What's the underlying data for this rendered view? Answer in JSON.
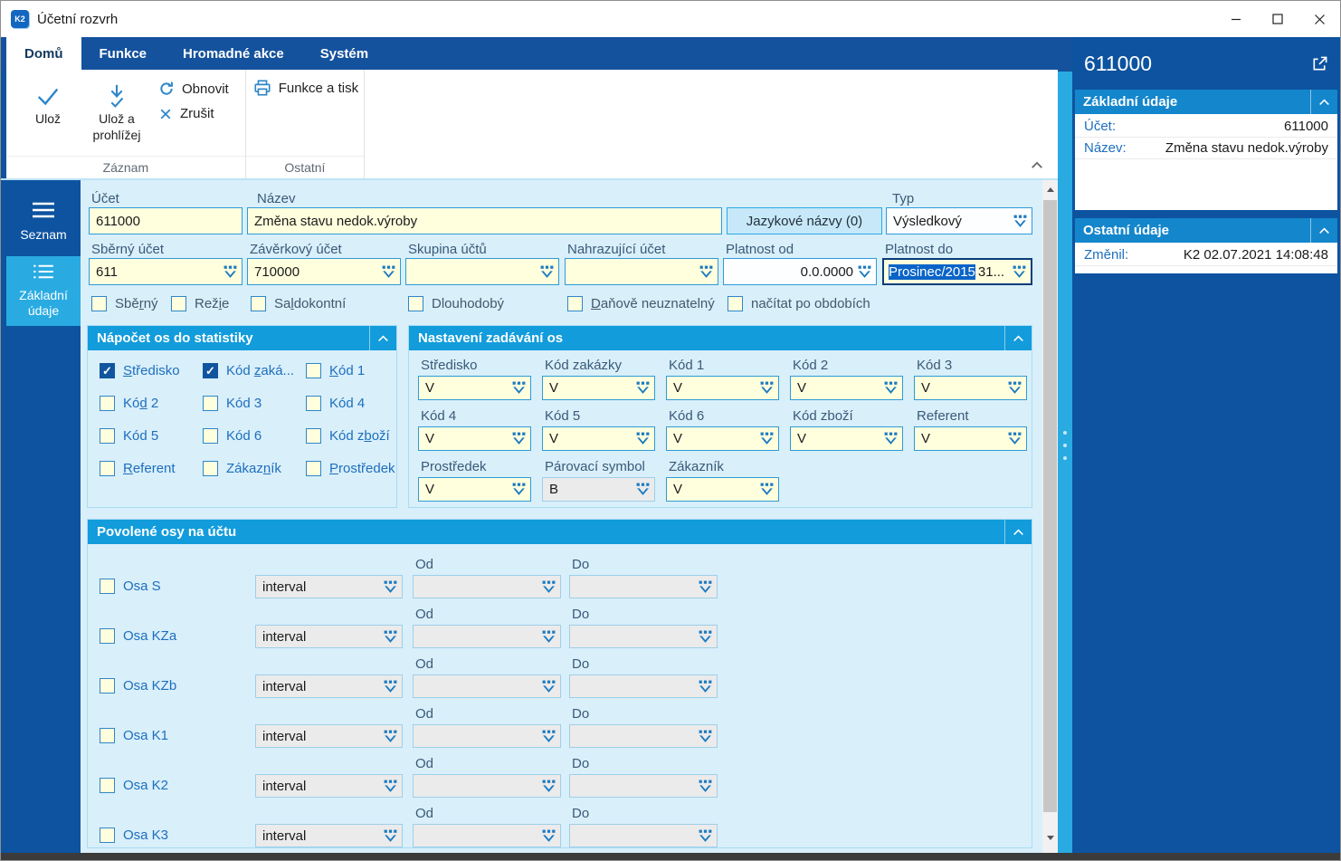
{
  "window": {
    "title": "Účetní rozvrh",
    "app_icon": "K2"
  },
  "ribbon": {
    "tabs": [
      {
        "label": "Domů",
        "active": true
      },
      {
        "label": "Funkce",
        "active": false
      },
      {
        "label": "Hromadné akce",
        "active": false
      },
      {
        "label": "Systém",
        "active": false
      }
    ],
    "buttons": {
      "save": "Ulož",
      "save_and_view": "Ulož a prohlížej",
      "refresh": "Obnovit",
      "cancel": "Zrušit",
      "functions_print": "Funkce a tisk"
    },
    "groups": {
      "record": "Záznam",
      "other": "Ostatní"
    }
  },
  "nav": {
    "items": [
      {
        "label": "Seznam",
        "active": false
      },
      {
        "label": "Základní údaje",
        "active": true
      }
    ]
  },
  "form": {
    "ucet": {
      "label": "Účet",
      "value": "611000"
    },
    "nazev": {
      "label": "Název",
      "value": "Změna stavu nedok.výroby"
    },
    "jazykove_nazvy_button": "Jazykové názvy (0)",
    "typ": {
      "label": "Typ",
      "value": "Výsledkový"
    },
    "sberny_ucet": {
      "label": "Sběrný účet",
      "value": "611"
    },
    "zaverkovy_ucet": {
      "label": "Závěrkový účet",
      "value": "710000"
    },
    "skupina_uctu": {
      "label": "Skupina účtů",
      "value": ""
    },
    "nahrazujici_ucet": {
      "label": "Nahrazující účet",
      "value": ""
    },
    "platnost_od": {
      "label": "Platnost od",
      "value": "0.0.0000"
    },
    "platnost_do": {
      "label": "Platnost do",
      "value_selected": "Prosinec/2015",
      "value_rest": "31..."
    },
    "checks": [
      {
        "pre": "Sbě",
        "accel": "r",
        "post": "ný",
        "checked": false
      },
      {
        "pre": "Rež",
        "accel": "i",
        "post": "e",
        "checked": false
      },
      {
        "pre": "Sa",
        "accel": "l",
        "post": "dokontní",
        "checked": false
      },
      {
        "pre": "Dlouhodobý",
        "accel": "",
        "post": "",
        "checked": false
      },
      {
        "pre": "",
        "accel": "D",
        "post": "aňově neuznatelný",
        "checked": false
      },
      {
        "pre": "načítat po obdobích",
        "accel": "",
        "post": "",
        "checked": false
      }
    ]
  },
  "napocet": {
    "title": "Nápočet os do statistiky",
    "items": [
      {
        "pre": "",
        "accel": "S",
        "post": "tředisko",
        "checked": true
      },
      {
        "pre": "Kód ",
        "accel": "z",
        "post": "aká...",
        "checked": true
      },
      {
        "pre": "",
        "accel": "K",
        "post": "ód 1",
        "checked": false
      },
      {
        "pre": "Kó",
        "accel": "d",
        "post": " 2",
        "checked": false
      },
      {
        "pre": "Kód 3",
        "accel": "",
        "post": "",
        "checked": false
      },
      {
        "pre": "Kód 4",
        "accel": "",
        "post": "",
        "checked": false
      },
      {
        "pre": "Kód 5",
        "accel": "",
        "post": "",
        "checked": false
      },
      {
        "pre": "Kód 6",
        "accel": "",
        "post": "",
        "checked": false
      },
      {
        "pre": "Kód z",
        "accel": "b",
        "post": "oží",
        "checked": false
      },
      {
        "pre": "",
        "accel": "R",
        "post": "eferent",
        "checked": false
      },
      {
        "pre": "Zákaz",
        "accel": "n",
        "post": "ík",
        "checked": false
      },
      {
        "pre": "",
        "accel": "P",
        "post": "rostředek",
        "checked": false
      }
    ]
  },
  "nastaveni": {
    "title": "Nastavení zadávání os",
    "fields": [
      {
        "label": "Středisko",
        "value": "V",
        "disabled": false
      },
      {
        "label": "Kód zakázky",
        "value": "V",
        "disabled": false
      },
      {
        "label": "Kód 1",
        "value": "V",
        "disabled": false
      },
      {
        "label": "Kód 2",
        "value": "V",
        "disabled": false
      },
      {
        "label": "Kód 3",
        "value": "V",
        "disabled": false
      },
      {
        "label": "Kód 4",
        "value": "V",
        "disabled": false
      },
      {
        "label": "Kód 5",
        "value": "V",
        "disabled": false
      },
      {
        "label": "Kód 6",
        "value": "V",
        "disabled": false
      },
      {
        "label": "Kód zboží",
        "value": "V",
        "disabled": false
      },
      {
        "label": "Referent",
        "value": "V",
        "disabled": false
      },
      {
        "label": "Prostředek",
        "value": "V",
        "disabled": false
      },
      {
        "label": "Párovací symbol",
        "value": "B",
        "disabled": true
      },
      {
        "label": "Zákazník",
        "value": "V",
        "disabled": false
      }
    ]
  },
  "povolene": {
    "title": "Povolené osy na účtu",
    "od_label": "Od",
    "do_label": "Do",
    "rows": [
      {
        "label": "Osa S",
        "mode": "interval",
        "od": "",
        "do": ""
      },
      {
        "label": "Osa KZa",
        "mode": "interval",
        "od": "",
        "do": ""
      },
      {
        "label": "Osa KZb",
        "mode": "interval",
        "od": "",
        "do": ""
      },
      {
        "label": "Osa K1",
        "mode": "interval",
        "od": "",
        "do": ""
      },
      {
        "label": "Osa K2",
        "mode": "interval",
        "od": "",
        "do": ""
      },
      {
        "label": "Osa K3",
        "mode": "interval",
        "od": "",
        "do": ""
      }
    ]
  },
  "details": {
    "title": "611000",
    "sections": [
      {
        "title": "Základní údaje",
        "rows": [
          {
            "label": "Účet:",
            "value": "611000"
          },
          {
            "label": "Název:",
            "value": "Změna stavu nedok.výroby"
          }
        ]
      },
      {
        "title": "Ostatní údaje",
        "rows": [
          {
            "label": "Změnil:",
            "value": "K2 02.07.2021 14:08:48"
          }
        ]
      }
    ]
  },
  "colors": {
    "accent": "#29abe2",
    "dark_blue": "#0d53a0",
    "panel_header": "#129cdb",
    "field_cream": "#ffffde"
  }
}
